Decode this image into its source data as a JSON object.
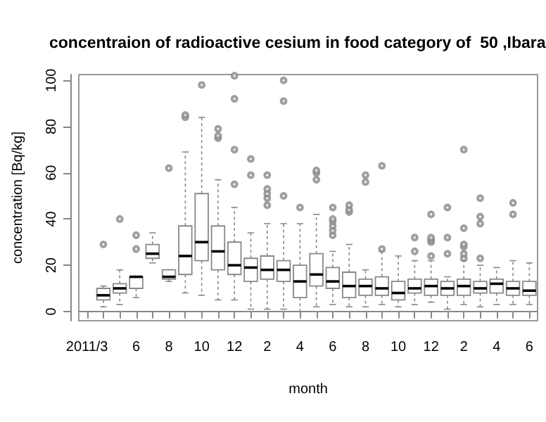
{
  "chart_data": {
    "type": "box",
    "title": "concentraion of radioactive cesium in food category of  50 ,Ibara",
    "xlabel": "month",
    "ylabel": "concentration [Bq/kg]",
    "categories": [
      "2011/3",
      null,
      null,
      "6",
      null,
      "8",
      null,
      "10",
      null,
      "12",
      null,
      "2",
      null,
      "4",
      null,
      "6",
      null,
      "8",
      null,
      "10",
      null,
      "12",
      null,
      "2",
      null,
      "4",
      null,
      "6"
    ],
    "ylim": [
      -4,
      102.5
    ],
    "yticks": [
      0,
      20,
      40,
      60,
      80,
      100
    ],
    "boxes": [
      null,
      {
        "low": 2,
        "q1": 5,
        "median": 7,
        "q3": 10,
        "high": 11,
        "outliers": [
          29
        ]
      },
      {
        "low": 3,
        "q1": 8,
        "median": 10,
        "q3": 12,
        "high": 18,
        "outliers": [
          40
        ]
      },
      {
        "low": 6,
        "q1": 10,
        "median": 15,
        "q3": 15,
        "high": 15,
        "outliers": [
          27,
          33
        ]
      },
      {
        "low": 21,
        "q1": 23,
        "median": 25,
        "q3": 29,
        "high": 34
      },
      {
        "low": 13,
        "q1": 14,
        "median": 15,
        "q3": 18,
        "high": 18,
        "outliers": [
          62
        ]
      },
      {
        "low": 8,
        "q1": 16,
        "median": 24,
        "q3": 37,
        "high": 69,
        "outliers": [
          84,
          85
        ]
      },
      {
        "low": 7,
        "q1": 22,
        "median": 30,
        "q3": 51,
        "high": 84,
        "outliers": [
          98
        ]
      },
      {
        "low": 5,
        "q1": 18,
        "median": 26,
        "q3": 37,
        "high": 57,
        "outliers": [
          75,
          76,
          79
        ]
      },
      {
        "low": 5,
        "q1": 16,
        "median": 20,
        "q3": 30,
        "high": 45,
        "outliers": [
          55,
          70,
          92,
          102
        ]
      },
      {
        "low": 1,
        "q1": 13,
        "median": 19,
        "q3": 23,
        "high": 34,
        "outliers": [
          59,
          66
        ]
      },
      {
        "low": 1,
        "q1": 14,
        "median": 18,
        "q3": 24,
        "high": 38,
        "outliers": [
          46,
          49,
          51,
          53,
          59
        ]
      },
      {
        "low": 1,
        "q1": 13,
        "median": 18,
        "q3": 22,
        "high": 38,
        "outliers": [
          50,
          91,
          100
        ]
      },
      {
        "low": 0,
        "q1": 6,
        "median": 13,
        "q3": 20,
        "high": 38,
        "outliers": [
          45
        ]
      },
      {
        "low": 2,
        "q1": 11,
        "median": 16,
        "q3": 25,
        "high": 42,
        "outliers": [
          57,
          60,
          61
        ]
      },
      {
        "low": 3,
        "q1": 10,
        "median": 13,
        "q3": 19,
        "high": 26,
        "outliers": [
          33,
          35,
          37,
          39,
          40,
          45
        ]
      },
      {
        "low": 2,
        "q1": 6,
        "median": 11,
        "q3": 17,
        "high": 29,
        "outliers": [
          43,
          44,
          46
        ]
      },
      {
        "low": 2,
        "q1": 7,
        "median": 11,
        "q3": 14,
        "high": 18,
        "outliers": [
          56,
          59
        ]
      },
      {
        "low": 3,
        "q1": 7,
        "median": 10,
        "q3": 15,
        "high": 26,
        "outliers": [
          27,
          63
        ]
      },
      {
        "low": 2,
        "q1": 5,
        "median": 8,
        "q3": 13,
        "high": 24
      },
      {
        "low": 3,
        "q1": 8,
        "median": 10,
        "q3": 14,
        "high": 22,
        "outliers": [
          26,
          32
        ]
      },
      {
        "low": 4,
        "q1": 7,
        "median": 11,
        "q3": 14,
        "high": 22,
        "outliers": [
          24,
          30,
          31,
          32,
          42
        ]
      },
      {
        "low": 1,
        "q1": 7,
        "median": 10,
        "q3": 13,
        "high": 15,
        "outliers": [
          25,
          32,
          45
        ]
      },
      {
        "low": 3,
        "q1": 7,
        "median": 11,
        "q3": 14,
        "high": 22,
        "outliers": [
          23,
          25,
          28,
          29,
          36,
          70
        ]
      },
      {
        "low": 2,
        "q1": 8,
        "median": 10,
        "q3": 13,
        "high": 20,
        "outliers": [
          23,
          38,
          41,
          49
        ]
      },
      {
        "low": 3,
        "q1": 8,
        "median": 12,
        "q3": 14,
        "high": 19
      },
      {
        "low": 3,
        "q1": 7,
        "median": 10,
        "q3": 13,
        "high": 22,
        "outliers": [
          42,
          47
        ]
      },
      {
        "low": 3,
        "q1": 7,
        "median": 9,
        "q3": 13,
        "high": 21
      }
    ]
  }
}
